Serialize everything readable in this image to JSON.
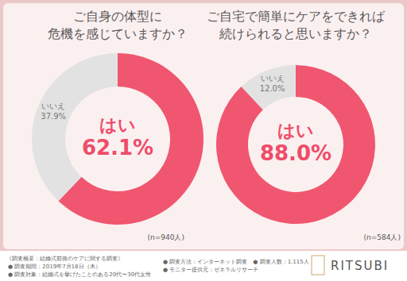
{
  "chart_data": [
    {
      "type": "donut",
      "title": "ご自身の体型に\n危機を感じていますか？",
      "categories": [
        "はい",
        "いいえ"
      ],
      "values": [
        62.1,
        37.9
      ],
      "value_labels": [
        "62.1%",
        "37.9%"
      ],
      "colors": [
        "#f0566f",
        "#e2e2e2"
      ],
      "data_labels": true,
      "note": "(n=940人)"
    },
    {
      "type": "donut",
      "title": "ご自宅で簡単にケアをできれば\n続けられると思いますか？",
      "categories": [
        "はい",
        "いいえ"
      ],
      "values": [
        88.0,
        12.0
      ],
      "value_labels": [
        "88.0%",
        "12.0%"
      ],
      "colors": [
        "#f0566f",
        "#e2e2e2"
      ],
      "data_labels": true,
      "note": "(n=584人)"
    }
  ],
  "footer": {
    "heading": "《調査概要：結婚式前後のケアに関する調査》",
    "items": [
      "● 調査期間：2019年7月18日（木）",
      "● 調査対象：結婚式を挙げたことのある20代〜30代女性",
      "● 調査方法：インターネット調査　● 調査人数：1,115人",
      "● モニター提供元：ゼネラルリサーチ"
    ],
    "brand": "RITSUBI"
  }
}
